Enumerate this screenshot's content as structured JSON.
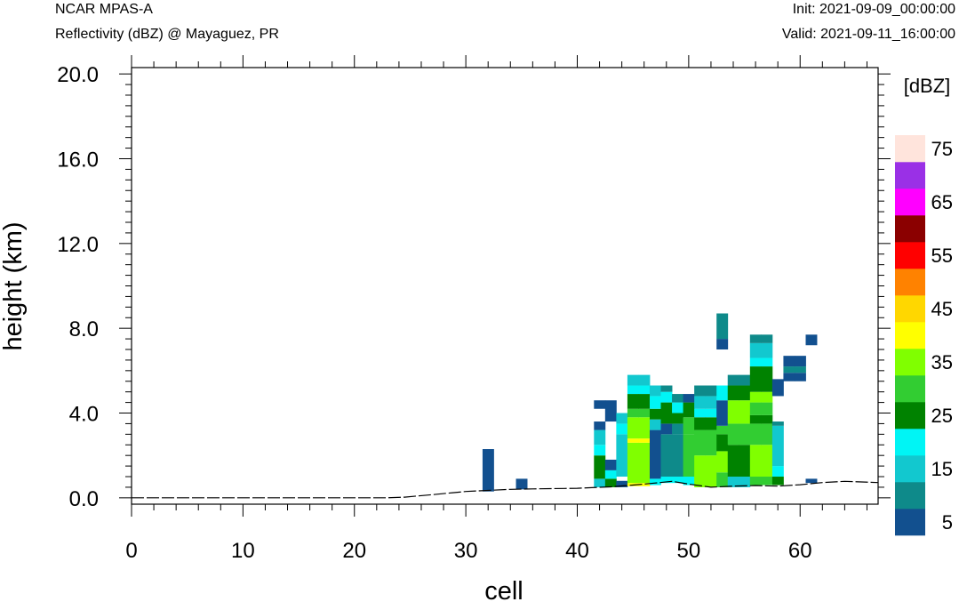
{
  "header": {
    "model": "NCAR MPAS-A",
    "product": "Reflectivity (dBZ) @ Mayaguez, PR",
    "init": "Init: 2021-09-09_00:00:00",
    "valid": "Valid: 2021-09-11_16:00:00"
  },
  "chart_data": {
    "type": "heatmap",
    "xlabel": "cell",
    "ylabel": "height (km)",
    "xlim": [
      0,
      67
    ],
    "ylim": [
      -0.3,
      20.3
    ],
    "x_ticks": [
      0,
      10,
      20,
      30,
      40,
      50,
      60
    ],
    "x_tick_labels": [
      "0",
      "10",
      "20",
      "30",
      "40",
      "50",
      "60"
    ],
    "y_ticks": [
      0,
      4,
      8,
      12,
      16,
      20
    ],
    "y_tick_labels": [
      "0.0",
      "4.0",
      "8.0",
      "12.0",
      "16.0",
      "20.0"
    ],
    "colorbar": {
      "title": "[dBZ]",
      "levels": [
        5,
        10,
        15,
        20,
        25,
        30,
        35,
        40,
        45,
        50,
        55,
        60,
        65,
        70,
        75
      ],
      "labels": [
        "5",
        "15",
        "25",
        "35",
        "45",
        "55",
        "65",
        "75"
      ],
      "colors": [
        "#12508F",
        "#0E8A8A",
        "#12C8CF",
        "#00F5F5",
        "#008200",
        "#32CD32",
        "#80FF00",
        "#FFFF00",
        "#FFD700",
        "#FF8200",
        "#FF0000",
        "#8B0000",
        "#FF00FF",
        "#9A30E6",
        "#FFE4DC"
      ]
    },
    "terrain": [
      [
        0,
        0
      ],
      [
        23,
        0
      ],
      [
        24.5,
        0.03
      ],
      [
        27,
        0.15
      ],
      [
        30,
        0.3
      ],
      [
        32,
        0.35
      ],
      [
        34,
        0.4
      ],
      [
        36,
        0.42
      ],
      [
        40,
        0.45
      ],
      [
        43,
        0.52
      ],
      [
        45,
        0.6
      ],
      [
        47,
        0.7
      ],
      [
        48.5,
        0.78
      ],
      [
        50,
        0.65
      ],
      [
        52,
        0.5
      ],
      [
        54,
        0.55
      ],
      [
        56,
        0.58
      ],
      [
        58,
        0.55
      ],
      [
        60,
        0.62
      ],
      [
        62,
        0.72
      ],
      [
        64,
        0.78
      ],
      [
        67,
        0.72
      ]
    ],
    "cells": [
      [
        32,
        0.3,
        2.3,
        5
      ],
      [
        35,
        0.4,
        0.9,
        5
      ],
      [
        42,
        0.5,
        0.9,
        15
      ],
      [
        42,
        0.9,
        2.0,
        25
      ],
      [
        42,
        2.0,
        2.5,
        20
      ],
      [
        42,
        2.5,
        3.2,
        15
      ],
      [
        42,
        3.2,
        3.6,
        5
      ],
      [
        42,
        4.2,
        4.6,
        5
      ],
      [
        43,
        0.5,
        0.9,
        25
      ],
      [
        43,
        0.9,
        1.3,
        20
      ],
      [
        43,
        1.3,
        1.8,
        5
      ],
      [
        43,
        3.6,
        4.6,
        5
      ],
      [
        44,
        0.5,
        0.8,
        5
      ],
      [
        44,
        1.0,
        3.0,
        15
      ],
      [
        44,
        3.0,
        3.5,
        20
      ],
      [
        44,
        3.5,
        4.0,
        15
      ],
      [
        45,
        0.55,
        0.7,
        40
      ],
      [
        45,
        0.7,
        2.6,
        35
      ],
      [
        45,
        2.6,
        2.8,
        40
      ],
      [
        45,
        2.8,
        3.8,
        35
      ],
      [
        45,
        3.8,
        4.2,
        30
      ],
      [
        45,
        4.2,
        4.9,
        25
      ],
      [
        45,
        4.9,
        5.3,
        20
      ],
      [
        45,
        5.3,
        5.8,
        15
      ],
      [
        46,
        0.55,
        0.7,
        40
      ],
      [
        46,
        0.7,
        2.6,
        35
      ],
      [
        46,
        2.6,
        2.8,
        40
      ],
      [
        46,
        2.8,
        3.8,
        35
      ],
      [
        46,
        3.8,
        4.2,
        30
      ],
      [
        46,
        4.2,
        4.9,
        25
      ],
      [
        46,
        4.9,
        5.3,
        20
      ],
      [
        46,
        5.3,
        5.8,
        15
      ],
      [
        47,
        0.6,
        0.9,
        20
      ],
      [
        47,
        0.9,
        3.2,
        5
      ],
      [
        47,
        3.2,
        3.7,
        15
      ],
      [
        47,
        3.7,
        4.2,
        25
      ],
      [
        47,
        4.2,
        4.8,
        20
      ],
      [
        47,
        4.8,
        5.3,
        15
      ],
      [
        48,
        0.7,
        1.0,
        20
      ],
      [
        48,
        1.0,
        3.0,
        10
      ],
      [
        48,
        3.0,
        3.5,
        5
      ],
      [
        48,
        3.5,
        4.5,
        25
      ],
      [
        48,
        4.5,
        5.0,
        20
      ],
      [
        48,
        5.0,
        5.3,
        10
      ],
      [
        49,
        0.7,
        1.0,
        20
      ],
      [
        49,
        1.0,
        3.0,
        10
      ],
      [
        49,
        3.0,
        3.5,
        10
      ],
      [
        49,
        3.5,
        4.0,
        25
      ],
      [
        49,
        4.0,
        4.5,
        20
      ],
      [
        49,
        4.5,
        4.9,
        10
      ],
      [
        50,
        0.6,
        1.0,
        20
      ],
      [
        50,
        1.0,
        3.0,
        30
      ],
      [
        50,
        3.0,
        3.8,
        30
      ],
      [
        50,
        3.8,
        4.0,
        25
      ],
      [
        50,
        4.0,
        4.5,
        25
      ],
      [
        50,
        4.5,
        4.9,
        5
      ],
      [
        51,
        0.5,
        2.0,
        35
      ],
      [
        51,
        2.0,
        3.2,
        30
      ],
      [
        51,
        3.2,
        3.8,
        25
      ],
      [
        51,
        3.8,
        4.2,
        20
      ],
      [
        51,
        4.2,
        4.8,
        15
      ],
      [
        51,
        4.8,
        5.3,
        10
      ],
      [
        52,
        0.5,
        2.0,
        35
      ],
      [
        52,
        2.0,
        3.2,
        30
      ],
      [
        52,
        3.2,
        3.8,
        25
      ],
      [
        52,
        3.8,
        4.2,
        20
      ],
      [
        52,
        4.2,
        4.8,
        15
      ],
      [
        52,
        4.8,
        5.3,
        10
      ],
      [
        53,
        0.5,
        1.2,
        30
      ],
      [
        53,
        1.2,
        2.2,
        35
      ],
      [
        53,
        2.2,
        3.0,
        25
      ],
      [
        53,
        3.0,
        3.4,
        30
      ],
      [
        53,
        3.4,
        4.6,
        5
      ],
      [
        53,
        4.6,
        5.3,
        20
      ],
      [
        53,
        7.0,
        7.5,
        5
      ],
      [
        53,
        7.5,
        8.7,
        10
      ],
      [
        54,
        0.5,
        1.0,
        15
      ],
      [
        54,
        1.0,
        2.5,
        25
      ],
      [
        54,
        2.5,
        3.5,
        30
      ],
      [
        54,
        3.5,
        4.6,
        35
      ],
      [
        54,
        4.6,
        5.3,
        25
      ],
      [
        54,
        5.3,
        5.8,
        10
      ],
      [
        55,
        0.5,
        1.0,
        15
      ],
      [
        55,
        1.0,
        2.5,
        25
      ],
      [
        55,
        2.5,
        3.5,
        30
      ],
      [
        55,
        3.5,
        4.6,
        35
      ],
      [
        55,
        4.6,
        5.3,
        25
      ],
      [
        55,
        5.3,
        5.8,
        10
      ],
      [
        56,
        0.6,
        1.0,
        30
      ],
      [
        56,
        1.0,
        2.5,
        35
      ],
      [
        56,
        2.5,
        3.5,
        30
      ],
      [
        56,
        3.5,
        3.9,
        25
      ],
      [
        56,
        3.9,
        4.5,
        30
      ],
      [
        56,
        4.5,
        5.0,
        35
      ],
      [
        56,
        5.0,
        6.2,
        25
      ],
      [
        56,
        6.2,
        6.6,
        20
      ],
      [
        56,
        6.6,
        7.3,
        15
      ],
      [
        56,
        7.3,
        7.7,
        10
      ],
      [
        57,
        0.6,
        1.0,
        30
      ],
      [
        57,
        1.0,
        2.5,
        35
      ],
      [
        57,
        2.5,
        3.5,
        30
      ],
      [
        57,
        3.5,
        3.9,
        25
      ],
      [
        57,
        3.9,
        4.5,
        30
      ],
      [
        57,
        4.5,
        5.0,
        35
      ],
      [
        57,
        5.0,
        6.2,
        25
      ],
      [
        57,
        6.2,
        6.6,
        20
      ],
      [
        57,
        6.6,
        7.3,
        15
      ],
      [
        57,
        7.3,
        7.7,
        10
      ],
      [
        58,
        0.6,
        1.0,
        25
      ],
      [
        58,
        1.0,
        1.5,
        20
      ],
      [
        58,
        1.5,
        3.4,
        15
      ],
      [
        58,
        3.4,
        3.6,
        10
      ],
      [
        58,
        4.8,
        5.6,
        5
      ],
      [
        59,
        5.5,
        5.9,
        5
      ],
      [
        59,
        5.9,
        6.2,
        10
      ],
      [
        59,
        6.2,
        6.7,
        5
      ],
      [
        60,
        5.5,
        5.9,
        5
      ],
      [
        60,
        5.9,
        6.2,
        10
      ],
      [
        60,
        6.2,
        6.7,
        5
      ],
      [
        61,
        0.7,
        0.9,
        5
      ],
      [
        61,
        7.2,
        7.7,
        5
      ]
    ]
  }
}
